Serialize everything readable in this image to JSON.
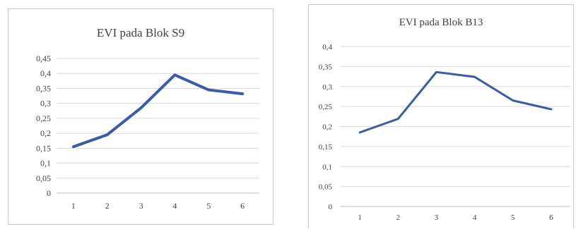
{
  "chart_data": [
    {
      "type": "line",
      "title": "EVI pada Blok S9",
      "xlabel": "",
      "ylabel": "",
      "categories": [
        "1",
        "2",
        "3",
        "4",
        "5",
        "6"
      ],
      "series": [
        {
          "values": [
            0.155,
            0.195,
            0.285,
            0.395,
            0.345,
            0.332
          ],
          "color": "#3A5BA8"
        }
      ],
      "ylim": [
        0,
        0.45
      ],
      "yticks": [
        "0",
        "0,05",
        "0,1",
        "0,15",
        "0,2",
        "0,25",
        "0,3",
        "0,35",
        "0,4",
        "0,45"
      ],
      "grid": true,
      "legend": "none"
    },
    {
      "type": "line",
      "title": "EVI pada Blok B13",
      "xlabel": "",
      "ylabel": "",
      "categories": [
        "1",
        "2",
        "3",
        "4",
        "5",
        "6"
      ],
      "series": [
        {
          "values": [
            0.185,
            0.219,
            0.336,
            0.324,
            0.265,
            0.243
          ],
          "color": "#3A5BA8"
        }
      ],
      "ylim": [
        0,
        0.4
      ],
      "yticks": [
        "0",
        "0,05",
        "0,1",
        "0,15",
        "0,2",
        "0,25",
        "0,3",
        "0,35",
        "0,4"
      ],
      "grid": true,
      "legend": "none"
    }
  ]
}
